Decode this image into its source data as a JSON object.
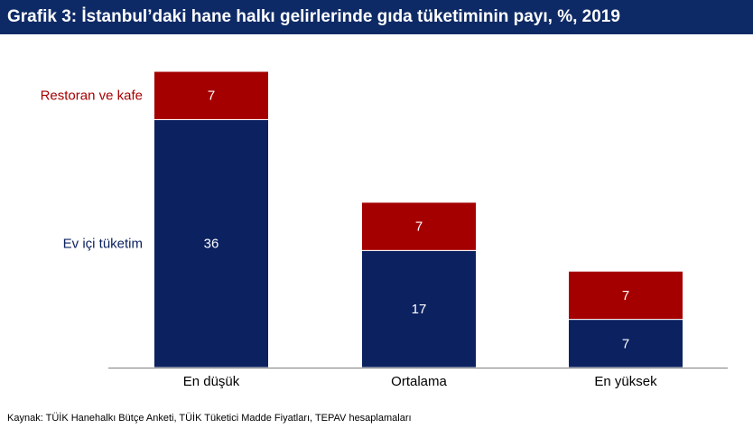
{
  "title": "Grafik 3: İstanbul’daki hane halkı gelirlerinde gıda tüketiminin payı, %, 2019",
  "source": "Kaynak: TÜİK Hanehalkı Bütçe Anketi, TÜİK Tüketici Madde Fiyatları, TEPAV hesaplamaları",
  "colors": {
    "title_bg": "#0e2a66",
    "home": "#0b2160",
    "restaurant": "#a50000",
    "axis": "#7f7f7f"
  },
  "chart_data": {
    "type": "bar",
    "stacked": true,
    "categories": [
      "En düşük",
      "Ortalama",
      "En yüksek"
    ],
    "series": [
      {
        "name": "Ev içi tüketim",
        "values": [
          36,
          17,
          7
        ]
      },
      {
        "name": "Restoran ve kafe",
        "values": [
          7,
          7,
          7
        ]
      }
    ],
    "ylim": [
      0,
      43
    ],
    "legend": "inline-left",
    "grid": false
  }
}
